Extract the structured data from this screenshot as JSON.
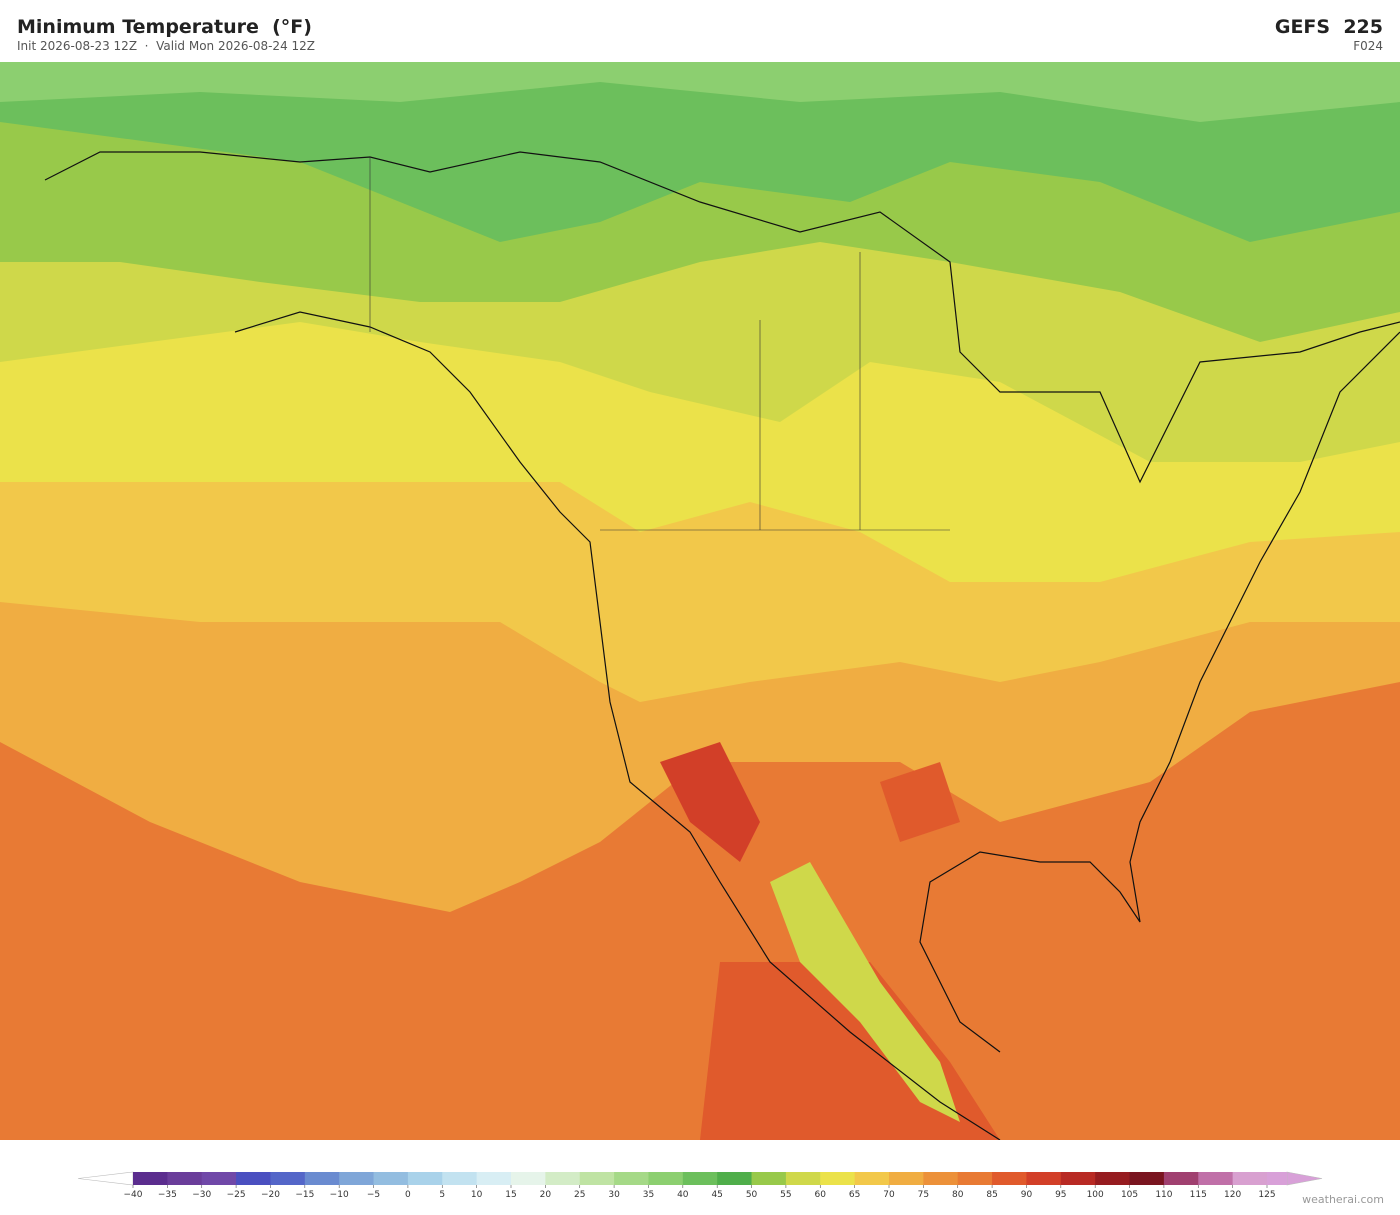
{
  "header": {
    "title": "Minimum Temperature  (°F)",
    "subtitle": "Init 2026-08-23 12Z  ·  Valid Mon 2026-08-24 12Z",
    "model": "GEFS  225",
    "forecast_hour": "F024"
  },
  "colorbar": {
    "ticks": [
      {
        "value": -40,
        "label": "−40"
      },
      {
        "value": -35,
        "label": "−35"
      },
      {
        "value": -30,
        "label": "−30"
      },
      {
        "value": -25,
        "label": "−25"
      },
      {
        "value": -20,
        "label": "−20"
      },
      {
        "value": -15,
        "label": "−15"
      },
      {
        "value": -10,
        "label": "−10"
      },
      {
        "value": -5,
        "label": "−5"
      },
      0,
      5,
      10,
      15,
      20,
      25,
      30,
      35,
      40,
      45,
      50,
      55,
      60,
      65,
      70,
      75,
      80,
      85,
      90,
      95,
      100,
      105,
      110,
      115,
      120,
      125
    ],
    "colors": [
      "#5b2d8e",
      "#6a3d9a",
      "#7048a8",
      "#4a4fc0",
      "#5466c8",
      "#6a8bd0",
      "#7fa6d8",
      "#93bde0",
      "#a9d2ea",
      "#c2e2f0",
      "#d8eef4",
      "#e6f4ea",
      "#d3ecc6",
      "#bfe3a3",
      "#a5d987",
      "#8ccf70",
      "#6cbf5c",
      "#4fae4a",
      "#98c94a",
      "#cfd84a",
      "#ebe24a",
      "#f2c84a",
      "#f0ad42",
      "#ec913a",
      "#e87a34",
      "#e05a2c",
      "#d23f28",
      "#b82a24",
      "#961c20",
      "#7a1520",
      "#a04070",
      "#c070a8",
      "#d8a0d0"
    ],
    "under_color": "#ffffff",
    "over_color": "#d8a0d8"
  },
  "watermark": "weatherai.com"
}
